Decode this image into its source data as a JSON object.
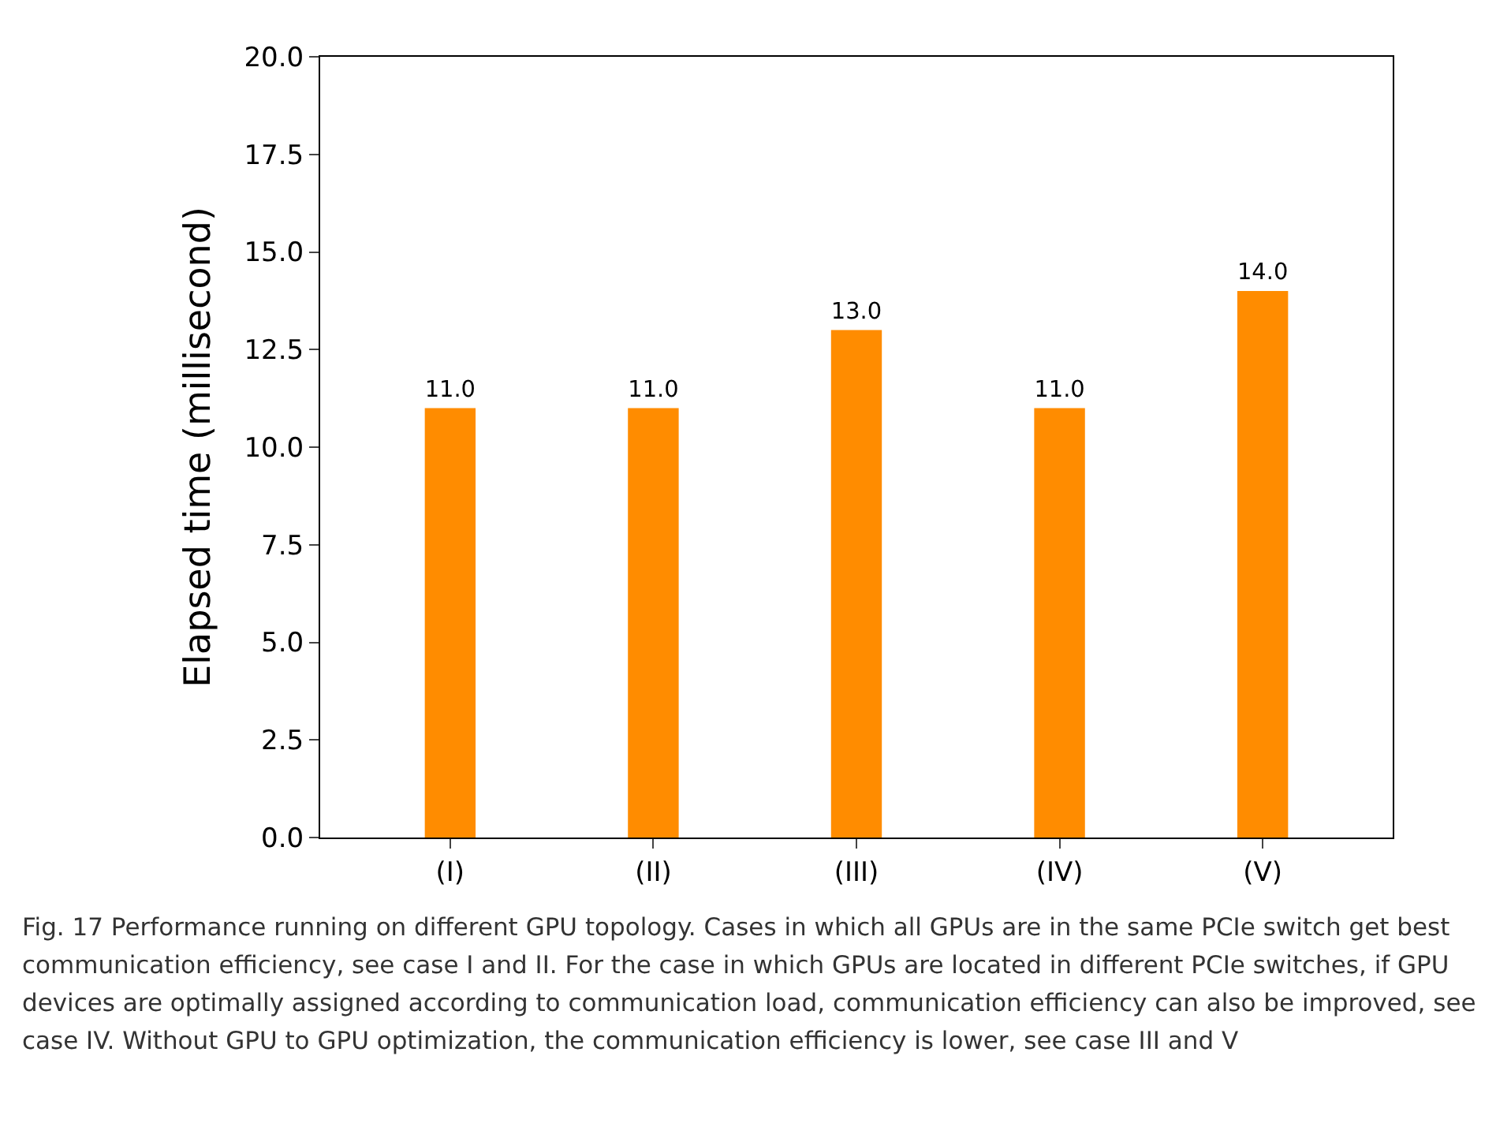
{
  "chart_data": {
    "type": "bar",
    "ylabel": "Elapsed time (millisecond)",
    "categories": [
      "(I)",
      "(II)",
      "(III)",
      "(IV)",
      "(V)"
    ],
    "values": [
      11.0,
      11.0,
      13.0,
      11.0,
      14.0
    ],
    "color": "#ff8c00",
    "ylim": [
      0,
      20
    ],
    "yticks": [
      "0.0",
      "2.5",
      "5.0",
      "7.5",
      "10.0",
      "12.5",
      "15.0",
      "17.5",
      "20.0"
    ],
    "value_labels": [
      "11.0",
      "11.0",
      "13.0",
      "11.0",
      "14.0"
    ],
    "grid": false,
    "annotations": [
      "Fig. 17  Performance running on different GPU topology. Cases in which all GPUs are in the same PCIe switch get best communication efficiency, see case I and II. For the case in which GPUs are located in different PCIe switches, if GPU devices are optimally assigned according to communication load, communication efficiency can also be improved, see case IV. Without GPU to GPU optimization, the communication efficiency is lower, see case III and V"
    ]
  }
}
